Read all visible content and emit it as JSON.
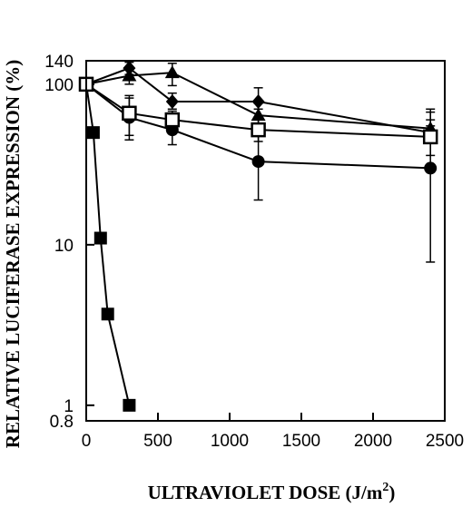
{
  "chart_data": {
    "type": "scatter",
    "xlabel": "ULTRAVIOLET DOSE (J/m",
    "xlabel_sup": "2",
    "xlabel_close": ")",
    "ylabel": "RELATIVE LUCIFERASE EXPRESSION (%)",
    "xlim": [
      0,
      2500
    ],
    "ylim": [
      0.8,
      140
    ],
    "yscale": "log",
    "grid": false,
    "x_ticks": [
      0,
      500,
      1000,
      1500,
      2000,
      2500
    ],
    "x_tick_labels": [
      "0",
      "500",
      "1000",
      "1500",
      "2000",
      "2500"
    ],
    "y_ticks": [
      0.8,
      1,
      10,
      100,
      140
    ],
    "y_tick_labels": [
      "0.8",
      "1",
      "10",
      "100",
      "140"
    ],
    "series": [
      {
        "marker": "filled-square",
        "x": [
          0,
          50,
          100,
          150,
          300
        ],
        "y": [
          100,
          50,
          11,
          3.7,
          1
        ],
        "err": [
          null,
          null,
          null,
          null,
          null
        ]
      },
      {
        "marker": "filled-circle",
        "x": [
          0,
          300,
          600,
          1200,
          2400
        ],
        "y": [
          100,
          62,
          52,
          33,
          30
        ],
        "err": [
          null,
          [
            45,
            82
          ],
          [
            42,
            65
          ],
          [
            19,
            55
          ],
          [
            7.8,
            70
          ]
        ]
      },
      {
        "marker": "filled-triangle",
        "x": [
          0,
          300,
          600,
          1200,
          2400
        ],
        "y": [
          100,
          113,
          118,
          64,
          53
        ],
        "err": [
          null,
          [
            100,
            125
          ],
          [
            98,
            135
          ],
          [
            55,
            76
          ],
          [
            44,
            60
          ]
        ]
      },
      {
        "marker": "filled-diamond",
        "x": [
          0,
          300,
          600,
          1200,
          2400
        ],
        "y": [
          100,
          126,
          78,
          78,
          50
        ],
        "err": [
          null,
          [
            115,
            137
          ],
          [
            70,
            88
          ],
          [
            70,
            95
          ],
          [
            45,
            55
          ]
        ]
      },
      {
        "marker": "open-square",
        "x": [
          0,
          300,
          600,
          1200,
          2400
        ],
        "y": [
          100,
          66,
          60,
          52,
          47
        ],
        "err": [
          null,
          [
            48,
            85
          ],
          [
            52,
            68
          ],
          [
            44,
            60
          ],
          [
            36,
            67
          ]
        ]
      }
    ]
  }
}
